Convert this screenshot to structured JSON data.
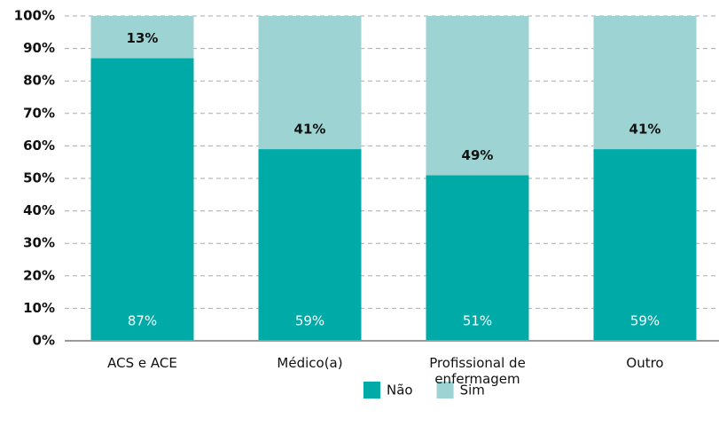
{
  "chart_data": {
    "type": "stacked_bar",
    "categories": [
      "ACS e ACE",
      "Médico(a)",
      "Profissional de enfermagem",
      "Outro"
    ],
    "series": [
      {
        "name": "Não",
        "color": "#00aaa7",
        "values": [
          87,
          59,
          51,
          59
        ],
        "value_labels": [
          "87%",
          "59%",
          "51%",
          "59%"
        ]
      },
      {
        "name": "Sim",
        "color": "#9dd3d3",
        "values": [
          13,
          41,
          49,
          41
        ],
        "value_labels": [
          "13%",
          "41%",
          "49%",
          "41%"
        ]
      }
    ],
    "ylim": [
      0,
      100
    ],
    "yticks": [
      {
        "value": 0,
        "label": "0%"
      },
      {
        "value": 10,
        "label": "10%"
      },
      {
        "value": 20,
        "label": "20%"
      },
      {
        "value": 30,
        "label": "30%"
      },
      {
        "value": 40,
        "label": "40%"
      },
      {
        "value": 50,
        "label": "50%"
      },
      {
        "value": 60,
        "label": "60%"
      },
      {
        "value": 70,
        "label": "70%"
      },
      {
        "value": 80,
        "label": "80%"
      },
      {
        "value": 90,
        "label": "90%"
      },
      {
        "value": 100,
        "label": "100%"
      }
    ],
    "grid": true,
    "legend": "bottom"
  }
}
